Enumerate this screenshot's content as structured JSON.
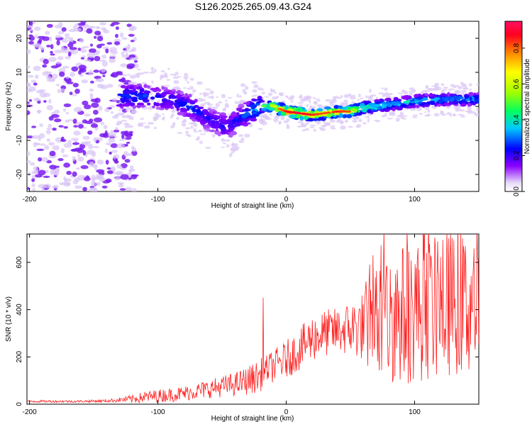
{
  "title": "S126.2025.265.09.43.G24",
  "chart_data": [
    {
      "type": "heatmap",
      "xlabel": "Height of straight line (km)",
      "ylabel": "Frequency (Hz)",
      "xlim": [
        -202,
        150
      ],
      "ylim": [
        -25,
        25
      ],
      "x_ticks": [
        -200,
        -100,
        0,
        100
      ],
      "y_ticks": [
        20,
        10,
        0,
        -10,
        -20
      ],
      "colorbar": {
        "label": "Normalized spectral amplitude",
        "range": [
          0,
          0.95
        ],
        "ticks": [
          "0.0",
          "0.2",
          "0.4",
          "0.6",
          "0.8"
        ],
        "colors": [
          "#e8dcf8",
          "#7a00ff",
          "#0000ff",
          "#00c8ff",
          "#00ff60",
          "#a0ff00",
          "#ffff00",
          "#ff8000",
          "#ff0040",
          "#ff1060"
        ]
      },
      "ridge": {
        "x": [
          -130,
          -110,
          -90,
          -75,
          -60,
          -45,
          -35,
          -20,
          -10,
          0,
          10,
          20,
          30,
          40,
          50,
          60,
          80,
          100,
          120,
          150
        ],
        "y": [
          3,
          3,
          2,
          0,
          -4,
          -6,
          -3,
          0,
          0,
          -1.5,
          -2,
          -2.5,
          -2,
          -1.5,
          -1.5,
          -0.5,
          0.5,
          1.5,
          2,
          2
        ],
        "peak_amplitude": [
          0.35,
          0.3,
          0.25,
          0.3,
          0.25,
          0.25,
          0.3,
          0.5,
          0.75,
          0.9,
          0.95,
          0.9,
          0.85,
          0.9,
          0.85,
          0.6,
          0.45,
          0.45,
          0.4,
          0.4
        ]
      },
      "noise_region_x": [
        -202,
        -125
      ]
    },
    {
      "type": "line",
      "xlabel": "Height of straight line (km)",
      "ylabel": "SNR (10 * v/v)",
      "xlim": [
        -202,
        150
      ],
      "ylim": [
        0,
        720
      ],
      "x_ticks": [
        -200,
        -100,
        0,
        100
      ],
      "y_ticks": [
        0,
        200,
        400,
        600
      ],
      "color": "#ff2020",
      "series": [
        {
          "x": [
            -200,
            -180,
            -160,
            -140,
            -130,
            -120,
            -110,
            -100,
            -90,
            -80,
            -70,
            -60,
            -50,
            -40,
            -30,
            -20,
            -18,
            -15,
            -10,
            0,
            10,
            20,
            30,
            40,
            50,
            60,
            65,
            70,
            80,
            90,
            100,
            110,
            120,
            130,
            140,
            150
          ],
          "y": [
            12,
            12,
            12,
            14,
            18,
            22,
            30,
            35,
            40,
            45,
            55,
            65,
            75,
            85,
            100,
            120,
            450,
            150,
            160,
            190,
            230,
            280,
            300,
            310,
            320,
            330,
            590,
            350,
            360,
            380,
            390,
            400,
            410,
            420,
            420,
            420
          ],
          "spread": [
            5,
            5,
            5,
            6,
            10,
            18,
            25,
            28,
            30,
            32,
            35,
            40,
            45,
            50,
            60,
            70,
            0,
            60,
            70,
            80,
            90,
            100,
            100,
            100,
            120,
            150,
            0,
            250,
            280,
            300,
            300,
            300,
            300,
            300,
            300,
            300
          ]
        }
      ]
    }
  ]
}
